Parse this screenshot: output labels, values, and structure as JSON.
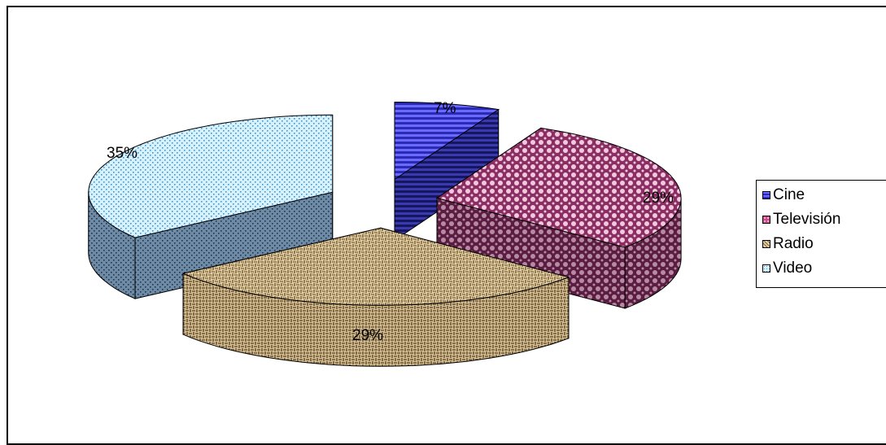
{
  "chart_data": {
    "type": "pie",
    "is_3d": true,
    "exploded": true,
    "categories": [
      "Cine",
      "Televisión",
      "Radio",
      "Video"
    ],
    "values": [
      7,
      29,
      29,
      35
    ],
    "data_labels": [
      "7%",
      "29%",
      "29%",
      "35%"
    ],
    "title": "",
    "legend": {
      "position": "right",
      "entries": [
        "Cine",
        "Televisión",
        "Radio",
        "Video"
      ]
    },
    "colors": [
      "#4646d2",
      "#c84c8c",
      "#c8b080",
      "#8ed8f2"
    ],
    "side_colors": [
      "#23237a",
      "#7a2e57",
      "#8e7a58",
      "#667f98"
    ]
  }
}
